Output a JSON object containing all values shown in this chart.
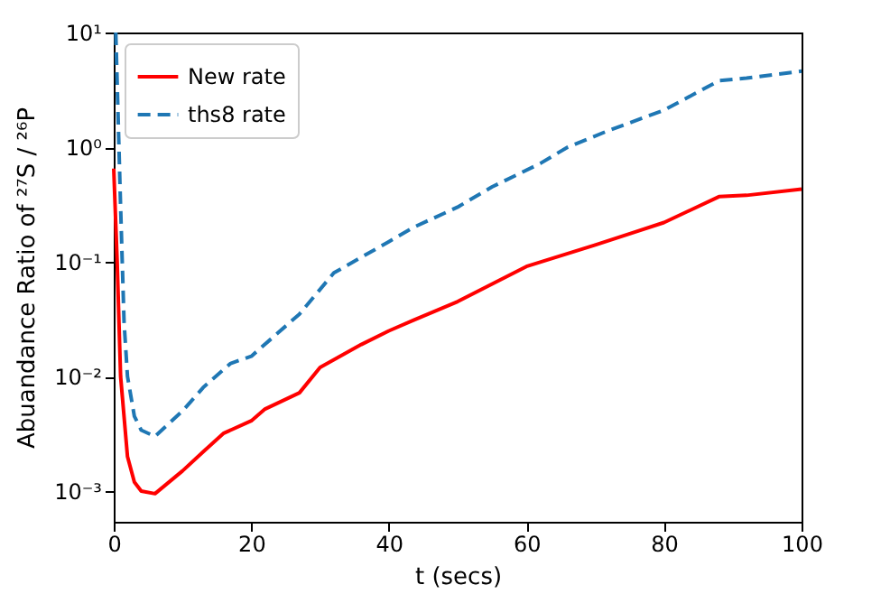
{
  "chart_data": {
    "type": "line",
    "xlabel": "t (secs)",
    "ylabel": "Abuandance Ratio of ²⁷S / ²⁶P",
    "xlim": [
      0,
      100
    ],
    "xticks": [
      0,
      20,
      40,
      60,
      80,
      100
    ],
    "ylim": [
      0.00054,
      10
    ],
    "yticks": [
      {
        "value": 0.001,
        "label": "10⁻³"
      },
      {
        "value": 0.01,
        "label": "10⁻²"
      },
      {
        "value": 0.1,
        "label": "10⁻¹"
      },
      {
        "value": 1,
        "label": "10⁰"
      },
      {
        "value": 10,
        "label": "10¹"
      }
    ],
    "log": "y",
    "grid": false,
    "legend": "top left",
    "marker": "none",
    "series": [
      {
        "name": "New rate",
        "color": "#ff0000",
        "line_style": "solid",
        "x": [
          0,
          0.5,
          1,
          2,
          3,
          4,
          6,
          10,
          13,
          16,
          20,
          22,
          27,
          30,
          36,
          40,
          43.6,
          50,
          60,
          70,
          80,
          88,
          92,
          100
        ],
        "values": [
          0.65,
          0.1,
          0.01,
          0.002,
          0.0012,
          0.001,
          0.00095,
          0.0015,
          0.0022,
          0.0032,
          0.0041,
          0.0052,
          0.0072,
          0.012,
          0.019,
          0.025,
          0.031,
          0.045,
          0.091,
          0.14,
          0.22,
          0.37,
          0.38,
          0.43
        ]
      },
      {
        "name": "ths8 rate",
        "color": "#1f77b4",
        "line_style": "dashed",
        "x": [
          0.3,
          1,
          1.5,
          2,
          3,
          4,
          6,
          10,
          13,
          17,
          20,
          27,
          32,
          40,
          43.6,
          50,
          55,
          62,
          66,
          72,
          80,
          88,
          92,
          100
        ],
        "values": [
          10,
          0.3,
          0.03,
          0.01,
          0.0045,
          0.0034,
          0.003,
          0.005,
          0.008,
          0.013,
          0.015,
          0.035,
          0.08,
          0.15,
          0.2,
          0.3,
          0.45,
          0.72,
          1.0,
          1.4,
          2.1,
          3.8,
          4.0,
          4.6
        ]
      }
    ]
  }
}
